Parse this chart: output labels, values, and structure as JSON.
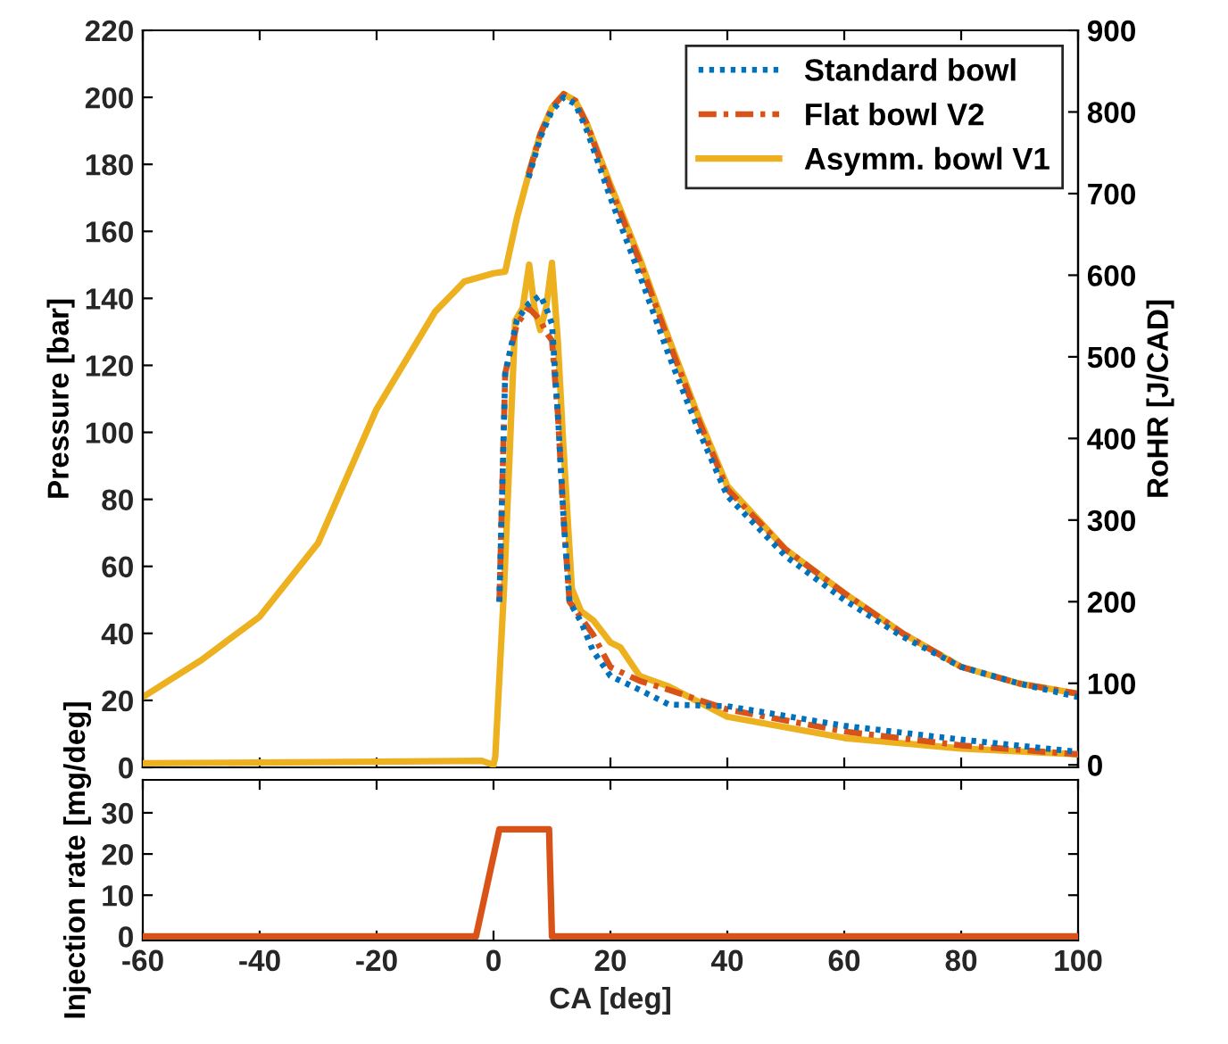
{
  "chart_data": [
    {
      "type": "line",
      "ylabel": "Pressure [bar]",
      "y2label": "RoHR [J/CAD]",
      "xlim": [
        -60,
        100
      ],
      "xticks": [
        -60,
        -40,
        -20,
        0,
        20,
        40,
        60,
        80,
        100
      ],
      "ylim": [
        0,
        220
      ],
      "yticks": [
        0,
        20,
        40,
        60,
        80,
        100,
        120,
        140,
        160,
        180,
        200,
        220
      ],
      "y2lim": [
        -3,
        900
      ],
      "y2ticks": [
        0,
        100,
        200,
        300,
        400,
        500,
        600,
        700,
        800,
        900
      ],
      "tick_labels": "y",
      "grid": false,
      "legend": "top right",
      "series": [
        {
          "name": "Standard bowl",
          "color": "#0072bd",
          "line_style": "dotted",
          "x": [
            6,
            8,
            10,
            12,
            14,
            16,
            20,
            25,
            30,
            35,
            40,
            50,
            60,
            70,
            80,
            90,
            100
          ],
          "values": [
            176,
            188,
            196,
            200,
            198,
            190,
            170,
            147,
            123,
            101,
            81,
            63,
            50,
            39,
            30,
            25,
            21
          ]
        },
        {
          "name": "Flat bowl V2",
          "color": "#d95319",
          "line_style": "dashdot",
          "x": [
            6,
            8,
            10,
            12,
            14,
            16,
            20,
            25,
            30,
            35,
            40,
            50,
            60,
            70,
            80,
            90,
            100
          ],
          "values": [
            177,
            189,
            197,
            201,
            199,
            192,
            173,
            151,
            127,
            104,
            83,
            65,
            52,
            40,
            30,
            25,
            22
          ]
        },
        {
          "name": "Asymm. bowl V1",
          "color": "#edb120",
          "line_style": "solid",
          "x": [
            -60,
            -50,
            -40,
            -30,
            -20,
            -10,
            -5,
            0,
            2,
            4,
            6,
            8,
            10,
            12,
            14,
            16,
            20,
            25,
            30,
            35,
            40,
            50,
            60,
            70,
            80,
            90,
            100
          ],
          "values": [
            21,
            32,
            45,
            67,
            107,
            136,
            145,
            147.5,
            148,
            164,
            177,
            189,
            197,
            201,
            199,
            192,
            174,
            152,
            128,
            105,
            84,
            65,
            52,
            40,
            30,
            25,
            22
          ]
        },
        {
          "color": "#0072bd",
          "line_style": "dotted",
          "axis": "y2",
          "x": [
            1,
            2,
            4,
            6,
            8,
            9,
            10,
            11,
            12,
            13,
            15,
            17,
            20,
            25,
            30,
            40,
            60,
            80,
            100
          ],
          "values": [
            200,
            480,
            545,
            565,
            575,
            560,
            540,
            430,
            300,
            200,
            175,
            140,
            109,
            92,
            74,
            72,
            48,
            31,
            16
          ]
        },
        {
          "color": "#d95319",
          "line_style": "dashdot",
          "axis": "y2",
          "x": [
            1,
            2,
            4,
            6,
            8,
            9,
            10,
            11,
            12,
            13,
            15,
            17,
            20,
            25,
            30,
            40,
            60,
            80,
            100
          ],
          "values": [
            200,
            480,
            540,
            560,
            545,
            530,
            520,
            430,
            300,
            200,
            180,
            160,
            120,
            103,
            92,
            68,
            41,
            24,
            13
          ]
        },
        {
          "color": "#edb120",
          "line_style": "solid",
          "axis": "y2",
          "x": [
            -60,
            -20,
            -2,
            0,
            0.3,
            1.8,
            3.7,
            5,
            6.1,
            7,
            8,
            9,
            10,
            11,
            11.9,
            13.4,
            15,
            17.1,
            20,
            21.7,
            25,
            30,
            40,
            60,
            80,
            100
          ],
          "values": [
            2,
            4,
            5,
            0,
            10,
            216,
            544,
            560,
            613,
            560,
            533,
            560,
            615,
            520,
            397,
            216,
            188,
            177,
            150,
            144,
            109,
            96,
            59,
            33,
            20,
            13
          ]
        }
      ]
    },
    {
      "type": "line",
      "xlabel": "CA [deg]",
      "ylabel": "Injection rate [mg/deg]",
      "xlim": [
        -60,
        100
      ],
      "xticks": [
        -60,
        -40,
        -20,
        0,
        20,
        40,
        60,
        80,
        100
      ],
      "ylim": [
        -1,
        38
      ],
      "yticks": [
        0,
        10,
        20,
        30
      ],
      "grid": false,
      "series": [
        {
          "color": "#d95319",
          "line_style": "solid",
          "x": [
            -60,
            -3,
            1,
            9.5,
            10,
            100
          ],
          "values": [
            0,
            0,
            26,
            26,
            0,
            0
          ]
        }
      ]
    }
  ]
}
